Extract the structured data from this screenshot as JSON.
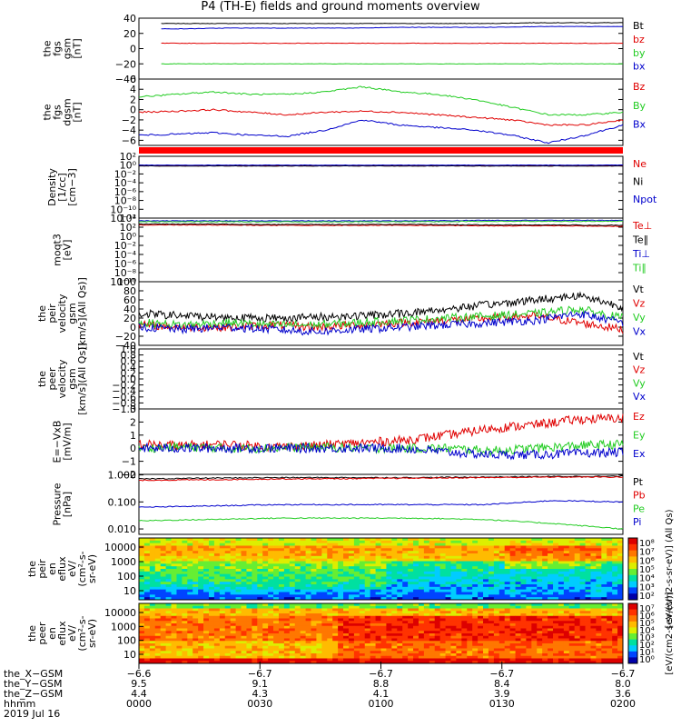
{
  "title": "P4 (TH-E) fields and ground moments overview",
  "colors": {
    "black": "#000000",
    "red": "#e00000",
    "green": "#22cc22",
    "blue": "#0000cc"
  },
  "chart_data": [
    {
      "id": "fgs",
      "type": "line",
      "ylabel": [
        "the",
        "fgs",
        "gsm",
        "[nT]"
      ],
      "ylim": [
        -40,
        40
      ],
      "ticks": [
        "40",
        "20",
        "0",
        "−20",
        "−40"
      ],
      "tick_values": [
        40,
        20,
        0,
        -20,
        -40
      ],
      "series": [
        {
          "name": "Bt",
          "color": "black",
          "values": [
            33,
            33,
            33,
            33,
            33,
            33,
            33,
            33,
            33,
            34,
            34,
            34
          ]
        },
        {
          "name": "bz",
          "color": "red",
          "values": [
            7,
            7,
            7,
            7,
            7,
            7,
            7,
            7,
            7,
            7,
            7,
            7
          ]
        },
        {
          "name": "by",
          "color": "green",
          "values": [
            -20,
            -20,
            -20,
            -20,
            -20,
            -20,
            -20,
            -20,
            -20,
            -20,
            -20,
            -20
          ]
        },
        {
          "name": "bx",
          "color": "blue",
          "values": [
            26,
            26,
            27,
            27,
            27,
            27,
            28,
            28,
            28,
            29,
            29,
            29
          ]
        }
      ]
    },
    {
      "id": "fgs_dgsm",
      "type": "line",
      "ylabel": [
        "the",
        "fgs",
        "dgsm",
        "[nT]"
      ],
      "ylim": [
        -7,
        6
      ],
      "ticks": [
        "6",
        "4",
        "2",
        "0",
        "−2",
        "−4",
        "−6"
      ],
      "tick_values": [
        6,
        4,
        2,
        0,
        -2,
        -4,
        -6
      ],
      "series": [
        {
          "name": "Bz",
          "color": "red",
          "values": [
            -0.5,
            -0.3,
            0,
            -0.5,
            -1,
            -0.5,
            -0.3,
            -0.5,
            -1,
            -1.5,
            -2,
            -3,
            -3,
            -2
          ]
        },
        {
          "name": "By",
          "color": "green",
          "values": [
            2.5,
            3,
            3.5,
            3,
            3,
            3.5,
            4.5,
            3.5,
            3,
            2,
            0.5,
            -1,
            -1,
            -0.5
          ]
        },
        {
          "name": "Bx",
          "color": "blue",
          "values": [
            -5,
            -4.8,
            -4.5,
            -5,
            -5.2,
            -4,
            -2,
            -3,
            -3.5,
            -4,
            -5,
            -6.5,
            -5,
            -3
          ]
        }
      ]
    },
    {
      "id": "density",
      "type": "line",
      "ylabel": [
        "Density",
        "[1/cc]",
        "[cm−3]"
      ],
      "ylim": [
        -12,
        2
      ],
      "ticks": [
        "10²",
        "10⁰",
        "10⁻²",
        "10⁻⁴",
        "10⁻⁶",
        "10⁻⁸",
        "10⁻¹⁰",
        "10⁻¹²"
      ],
      "tick_values": [
        2,
        0,
        -2,
        -4,
        -6,
        -8,
        -10,
        -12
      ],
      "series": [
        {
          "name": "Ne",
          "color": "red",
          "values": [
            -0.1,
            -0.1,
            -0.1,
            -0.1,
            -0.1,
            -0.1,
            -0.1,
            -0.1
          ]
        },
        {
          "name": "Ni",
          "color": "black",
          "values": [
            -0.2,
            -0.2,
            -0.2,
            -0.2,
            -0.2,
            -0.2,
            -0.2,
            -0.2
          ]
        },
        {
          "name": "Npot",
          "color": "blue",
          "values": [
            0,
            0,
            0,
            0,
            0,
            0,
            0,
            0
          ]
        }
      ]
    },
    {
      "id": "temp",
      "type": "line",
      "ylabel": [
        "moqt3",
        "[eV]"
      ],
      "ylim": [
        -10,
        4
      ],
      "ticks": [
        "10⁴",
        "10²",
        "10⁰",
        "10⁻²",
        "10⁻⁴",
        "10⁻⁶",
        "10⁻⁸",
        "10⁻¹⁰"
      ],
      "tick_values": [
        4,
        2,
        0,
        -2,
        -4,
        -6,
        -8,
        -10
      ],
      "series": [
        {
          "name": "Te⊥",
          "color": "red",
          "values": [
            2.5,
            2.5,
            2.4,
            2.4,
            2.4,
            2.3,
            2.3,
            2.2
          ]
        },
        {
          "name": "Te∥",
          "color": "black",
          "values": [
            2.7,
            2.7,
            2.6,
            2.6,
            2.6,
            2.5,
            2.5,
            2.4
          ]
        },
        {
          "name": "Ti⊥",
          "color": "blue",
          "values": [
            3.4,
            3.4,
            3.4,
            3.4,
            3.4,
            3.5,
            3.5,
            3.5
          ]
        },
        {
          "name": "Ti∥",
          "color": "green",
          "values": [
            3.2,
            3.2,
            3.2,
            3.2,
            3.2,
            3.3,
            3.3,
            3.3
          ]
        }
      ]
    },
    {
      "id": "peir_v",
      "type": "line",
      "ylabel": [
        "the",
        "peir",
        "velocity",
        "gsm",
        "[km/s](All Qs)]"
      ],
      "ylim": [
        -40,
        100
      ],
      "ticks": [
        "100",
        "80",
        "60",
        "40",
        "20",
        "0",
        "−20",
        "−40"
      ],
      "tick_values": [
        100,
        80,
        60,
        40,
        20,
        0,
        -20,
        -40
      ],
      "series": [
        {
          "name": "Vt",
          "color": "black",
          "values": [
            30,
            25,
            22,
            20,
            22,
            25,
            30,
            40,
            50,
            60,
            70,
            45
          ]
        },
        {
          "name": "Vz",
          "color": "red",
          "values": [
            5,
            0,
            0,
            5,
            0,
            5,
            10,
            15,
            20,
            25,
            10,
            -5
          ]
        },
        {
          "name": "Vy",
          "color": "green",
          "values": [
            10,
            5,
            10,
            5,
            5,
            10,
            15,
            20,
            25,
            30,
            40,
            20
          ]
        },
        {
          "name": "Vx",
          "color": "blue",
          "values": [
            0,
            -5,
            0,
            -5,
            -10,
            -5,
            0,
            5,
            10,
            15,
            30,
            10
          ]
        }
      ]
    },
    {
      "id": "peer_v",
      "type": "line",
      "ylabel": [
        "the",
        "peer",
        "velocity",
        "gsm",
        "[km/s](All Qs)]"
      ],
      "ylim": [
        -1,
        1
      ],
      "ticks": [
        "1.0",
        "0.8",
        "0.6",
        "0.4",
        "0.2",
        "0.0",
        "−0.2",
        "−0.4",
        "−0.6",
        "−0.8",
        "−1.0"
      ],
      "tick_values": [
        1,
        0.8,
        0.6,
        0.4,
        0.2,
        0,
        -0.2,
        -0.4,
        -0.6,
        -0.8,
        -1
      ],
      "series": [
        {
          "name": "Vt",
          "color": "black",
          "values": []
        },
        {
          "name": "Vz",
          "color": "red",
          "values": []
        },
        {
          "name": "Vy",
          "color": "green",
          "values": []
        },
        {
          "name": "Vx",
          "color": "blue",
          "values": []
        }
      ]
    },
    {
      "id": "efield",
      "type": "line",
      "ylabel": [
        "E=−VxB",
        "[mV/m]"
      ],
      "ylim": [
        -2,
        3
      ],
      "ticks": [
        "3",
        "2",
        "1",
        "0",
        "−1",
        "−2"
      ],
      "tick_values": [
        3,
        2,
        1,
        0,
        -1,
        -2
      ],
      "series": [
        {
          "name": "Ez",
          "color": "red",
          "values": [
            0.3,
            0.2,
            0.3,
            0.1,
            0.2,
            0.4,
            0.6,
            1.0,
            1.5,
            1.8,
            2.2,
            2.3
          ]
        },
        {
          "name": "Ey",
          "color": "green",
          "values": [
            0,
            0.1,
            0,
            0,
            0.1,
            0,
            0,
            0,
            -0.2,
            0,
            0.2,
            0.3
          ]
        },
        {
          "name": "Ex",
          "color": "blue",
          "values": [
            0,
            0,
            0,
            0,
            0,
            0,
            0,
            -0.3,
            -0.5,
            -0.5,
            -0.4,
            -0.3
          ]
        }
      ]
    },
    {
      "id": "pressure",
      "type": "line",
      "ylabel": [
        "Pressure",
        "[nPa]"
      ],
      "ylim": [
        -2.2,
        0.02
      ],
      "ticks": [
        "1.000",
        "0.100",
        "0.010"
      ],
      "tick_values": [
        0,
        -1,
        -2
      ],
      "series": [
        {
          "name": "Pt",
          "color": "black",
          "values": [
            -0.15,
            -0.12,
            -0.1,
            -0.1,
            -0.1,
            -0.08,
            -0.06,
            -0.05
          ]
        },
        {
          "name": "Pb",
          "color": "red",
          "values": [
            -0.2,
            -0.18,
            -0.15,
            -0.14,
            -0.12,
            -0.1,
            -0.08,
            -0.08
          ]
        },
        {
          "name": "Pe",
          "color": "green",
          "values": [
            -1.7,
            -1.65,
            -1.6,
            -1.6,
            -1.6,
            -1.65,
            -1.8,
            -2.0
          ]
        },
        {
          "name": "Pi",
          "color": "blue",
          "values": [
            -1.2,
            -1.15,
            -1.1,
            -1.1,
            -1.1,
            -1.1,
            -0.95,
            -1.0
          ]
        }
      ]
    },
    {
      "id": "peir_en",
      "type": "heatmap",
      "ylabel": [
        "the",
        "peir",
        "en",
        "eflux",
        "eV/",
        "(cm²-s-",
        "sr-eV)"
      ],
      "yticks": [
        "10000",
        "1000",
        "100",
        "10"
      ],
      "colorbar": {
        "ticks": [
          "10⁸",
          "10⁷",
          "10⁶",
          "10⁵",
          "10⁴",
          "10³",
          "10²"
        ],
        "label": "[eV/(cm2-s-sr-eV)] (All Qs)"
      }
    },
    {
      "id": "peer_en",
      "type": "heatmap",
      "ylabel": [
        "the",
        "peer",
        "en",
        "eflux",
        "eV/",
        "(cm²-s-",
        "sr-eV)"
      ],
      "yticks": [
        "10000",
        "1000",
        "100",
        "10"
      ],
      "colorbar": {
        "ticks": [
          "10⁷",
          "10⁶",
          "10⁵",
          "10⁴",
          "10³",
          "10²",
          "10¹",
          "10⁰"
        ],
        "label": "[eV/(cm2-s-sr-eV)]"
      }
    }
  ],
  "xaxis": {
    "rows": [
      {
        "label": "the_X−GSM",
        "values": [
          "−6.6",
          "−6.7",
          "−6.7",
          "−6.7",
          "−6.7"
        ]
      },
      {
        "label": "the_Y−GSM",
        "values": [
          "9.5",
          "9.1",
          "8.8",
          "8.4",
          "8.0"
        ]
      },
      {
        "label": "the_Z−GSM",
        "values": [
          "4.4",
          "4.3",
          "4.1",
          "3.9",
          "3.6"
        ]
      },
      {
        "label": "hhmm",
        "values": [
          "0000",
          "0030",
          "0100",
          "0130",
          "0200"
        ]
      }
    ],
    "date": "2019 Jul 16"
  }
}
